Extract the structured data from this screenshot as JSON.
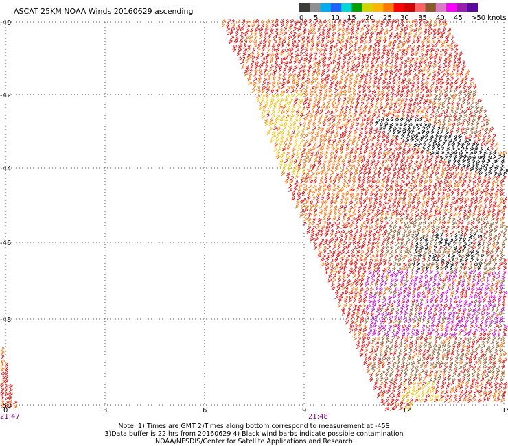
{
  "title": "ASCAT 25KM NOAA Winds 20160629 ascending",
  "legend": {
    "colors": [
      "#3c3c3c",
      "#909090",
      "#00aeef",
      "#1e64ff",
      "#00d8d8",
      "#00a000",
      "#d4d400",
      "#ffb400",
      "#ff7800",
      "#ff0000",
      "#d20000",
      "#ff6464",
      "#8b5a2b",
      "#dc7ac8",
      "#ff00ff",
      "#9b1fae",
      "#5a0aa0"
    ],
    "labels": [
      "0",
      "5",
      "10",
      "15",
      "20",
      "25",
      "30",
      "35",
      "40",
      "45",
      ">50 knots"
    ]
  },
  "axes": {
    "x_ticks": [
      "0",
      "3",
      "6",
      "9",
      "12",
      "15"
    ],
    "y_ticks": [
      "-40",
      "-42",
      "-44",
      "-46",
      "-48",
      "-50"
    ]
  },
  "times": [
    "21:47",
    "21:48"
  ],
  "colors": {
    "red": "#e00000",
    "orange": "#ff6a00",
    "yellow": "#f0c000",
    "brown": "#8b5a2b",
    "magenta": "#c000c0",
    "black": "#000000",
    "time_label": "#800080"
  },
  "notes": [
    "Note: 1) Times are GMT 2)Times along bottom correspond to measurement at -45S",
    "3)Data buffer is 22 hrs from 20160629 4) Black wind barbs indicate possible contamination",
    "NOAA/NESDIS/Center for Satellite Applications and Research"
  ]
}
